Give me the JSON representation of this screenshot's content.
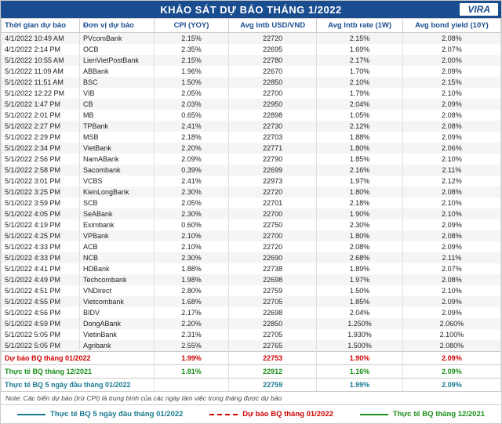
{
  "header": {
    "title": "KHẢO SÁT DỰ BÁO THÁNG 1/2022",
    "logo_text": "VIRA"
  },
  "columns": [
    "Thời gian dự báo",
    "Đơn vị dự báo",
    "CPI (YOY)",
    "Avg Intb USD/VND",
    "Avg Intb rate (1W)",
    "Avg bond yield (10Y)"
  ],
  "rows": [
    [
      "4/1/2022 10:49 AM",
      "PVcomBank",
      "2.15%",
      "22720",
      "2.15%",
      "2.08%"
    ],
    [
      "4/1/2022 2:14 PM",
      "OCB",
      "2.35%",
      "22695",
      "1.69%",
      "2.07%"
    ],
    [
      "5/1/2022 10:55 AM",
      "LienVietPostBank",
      "2.15%",
      "22780",
      "2.17%",
      "2.00%"
    ],
    [
      "5/1/2022 11:09 AM",
      "ABBank",
      "1.96%",
      "22670",
      "1.70%",
      "2.09%"
    ],
    [
      "5/1/2022 11:51 AM",
      "BSC",
      "1.50%",
      "22850",
      "2.10%",
      "2.15%"
    ],
    [
      "5/1/2022 12:22 PM",
      "VIB",
      "2.05%",
      "22700",
      "1.79%",
      "2.10%"
    ],
    [
      "5/1/2022 1:47 PM",
      "CB",
      "2.03%",
      "22950",
      "2.04%",
      "2.09%"
    ],
    [
      "5/1/2022 2:01 PM",
      "MB",
      "0.65%",
      "22898",
      "1.05%",
      "2.08%"
    ],
    [
      "5/1/2022 2:27 PM",
      "TPBank",
      "2.41%",
      "22730",
      "2.12%",
      "2.08%"
    ],
    [
      "5/1/2022 2:29 PM",
      "MSB",
      "2.18%",
      "22703",
      "1.88%",
      "2.09%"
    ],
    [
      "5/1/2022 2:34 PM",
      "VietBank",
      "2.20%",
      "22771",
      "1.80%",
      "2.06%"
    ],
    [
      "5/1/2022 2:56 PM",
      "NamABank",
      "2.09%",
      "22790",
      "1.85%",
      "2.10%"
    ],
    [
      "5/1/2022 2:58 PM",
      "Sacombank",
      "0.39%",
      "22699",
      "2.16%",
      "2.11%"
    ],
    [
      "5/1/2022 3:01 PM",
      "VCBS",
      "2.41%",
      "22973",
      "1.97%",
      "2.12%"
    ],
    [
      "5/1/2022 3:25 PM",
      "KienLongBank",
      "2.30%",
      "22720",
      "1.80%",
      "2.08%"
    ],
    [
      "5/1/2022 3:59 PM",
      "SCB",
      "2.05%",
      "22701",
      "2.18%",
      "2.10%"
    ],
    [
      "5/1/2022 4:05 PM",
      "SeABank",
      "2.30%",
      "22700",
      "1.90%",
      "2.10%"
    ],
    [
      "5/1/2022 4:19 PM",
      "Eximbank",
      "0.60%",
      "22750",
      "2.30%",
      "2.09%"
    ],
    [
      "5/1/2022 4:25 PM",
      "VPBank",
      "2.10%",
      "22700",
      "1.80%",
      "2.08%"
    ],
    [
      "5/1/2022 4:33 PM",
      "ACB",
      "2.10%",
      "22720",
      "2.08%",
      "2.09%"
    ],
    [
      "5/1/2022 4:33 PM",
      "NCB",
      "2.30%",
      "22690",
      "2.68%",
      "2.11%"
    ],
    [
      "5/1/2022 4:41 PM",
      "HDBank",
      "1.88%",
      "22738",
      "1.89%",
      "2.07%"
    ],
    [
      "5/1/2022 4:49 PM",
      "Techcombank",
      "1.98%",
      "22698",
      "1.97%",
      "2.08%"
    ],
    [
      "5/1/2022 4:51 PM",
      "VNDirect",
      "2.80%",
      "22759",
      "1.50%",
      "2.10%"
    ],
    [
      "5/1/2022 4:55 PM",
      "Vietcombank",
      "1.68%",
      "22705",
      "1.85%",
      "2.09%"
    ],
    [
      "5/1/2022 4:56 PM",
      "BIDV",
      "2.17%",
      "22698",
      "2.04%",
      "2.09%"
    ],
    [
      "5/1/2022 4:59 PM",
      "DongABank",
      "2.20%",
      "22850",
      "1.250%",
      "2.060%"
    ],
    [
      "5/1/2022 5:05 PM",
      "VietinBank",
      "2.31%",
      "22705",
      "1.930%",
      "2.100%"
    ],
    [
      "5/1/2022 5:05 PM",
      "Agribank",
      "2.55%",
      "22765",
      "1.500%",
      "2.080%"
    ]
  ],
  "summary": [
    {
      "cls": "red",
      "label": "Dự báo BQ tháng 01/2022",
      "vals": [
        "1.99%",
        "22753",
        "1.90%",
        "2.09%"
      ]
    },
    {
      "cls": "green",
      "label": "Thực tế BQ tháng 12/2021",
      "vals": [
        "1.81%",
        "22912",
        "1.16%",
        "2.09%"
      ]
    },
    {
      "cls": "teal",
      "label": "Thực tế BQ 5 ngày đầu tháng 01/2022",
      "vals": [
        "",
        "22759",
        "1.99%",
        "2.09%"
      ]
    }
  ],
  "note": "Note: Các biến dự báo (trừ CPI) là trung bình của các ngày làm việc trong tháng được dự báo",
  "legend": [
    {
      "cls": "teal",
      "line": "line-teal",
      "text": "Thực tế BQ 5 ngày đầu tháng 01/2022"
    },
    {
      "cls": "red",
      "line": "line-red",
      "text": "Dự báo BQ tháng 01/2022"
    },
    {
      "cls": "green",
      "line": "line-green",
      "text": "Thực tế BQ tháng 12/2021"
    }
  ],
  "colors": {
    "header_bg": "#1a4d8f",
    "row_alt": "#f5f5f5",
    "red": "#d00000",
    "green": "#1a8f1a",
    "teal": "#1a7a8f",
    "border": "#cccccc"
  }
}
